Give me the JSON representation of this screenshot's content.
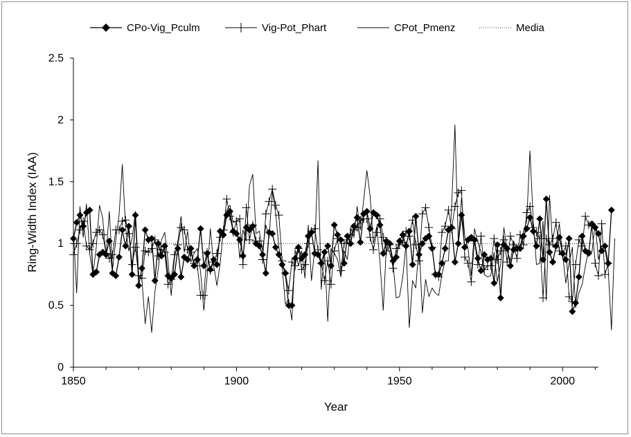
{
  "chart_data": {
    "type": "line",
    "title": "",
    "xlabel": "Year",
    "ylabel": "Ring-Width Index (IAA)",
    "xlim": [
      1850,
      2011
    ],
    "ylim": [
      0,
      2.5
    ],
    "x_ticks": [
      "1850",
      "1900",
      "1950",
      "2000"
    ],
    "y_ticks": [
      "0",
      "0.5",
      "1",
      "1.5",
      "2",
      "2.5"
    ],
    "grid": false,
    "legend_position": "top",
    "x_start_year": 1850,
    "series": [
      {
        "name": "CPo-Vig_Pculm",
        "marker": "diamond",
        "start_year": 1850,
        "values": [
          1.04,
          1.17,
          1.23,
          1.14,
          1.25,
          1.27,
          0.75,
          0.77,
          0.91,
          0.93,
          0.91,
          1.02,
          0.76,
          0.74,
          0.89,
          1.11,
          0.98,
          1.14,
          0.75,
          1.23,
          0.66,
          0.8,
          1.11,
          1.03,
          1.04,
          0.7,
          1.0,
          0.9,
          0.98,
          0.74,
          0.72,
          0.75,
          0.96,
          0.73,
          0.89,
          0.87,
          0.96,
          0.82,
          0.87,
          1.12,
          0.82,
          0.92,
          0.79,
          0.87,
          0.83,
          1.1,
          1.07,
          1.23,
          1.26,
          1.1,
          1.08,
          1.03,
          0.9,
          1.13,
          1.11,
          1.14,
          1.0,
          0.98,
          0.91,
          0.76,
          1.09,
          1.08,
          0.97,
          0.91,
          0.83,
          0.76,
          0.5,
          0.5,
          0.88,
          0.97,
          0.88,
          0.91,
          1.06,
          1.09,
          0.92,
          0.91,
          0.84,
          0.93,
          0.98,
          0.82,
          1.15,
          1.07,
          1.03,
          0.84,
          1.06,
          1.0,
          1.14,
          1.21,
          1.01,
          1.24,
          1.26,
          1.12,
          1.25,
          1.23,
          1.15,
          0.92,
          1.02,
          1.0,
          0.86,
          0.89,
          1.02,
          1.07,
          0.98,
          1.1,
          0.83,
          1.22,
          0.91,
          1.0,
          1.04,
          1.06,
          0.96,
          0.75,
          0.75,
          0.84,
          0.96,
          1.11,
          1.13,
          0.85,
          1.0,
          1.23,
          0.97,
          1.03,
          1.05,
          1.03,
          0.88,
          0.78,
          0.91,
          0.87,
          0.88,
          0.68,
          0.99,
          0.56,
          0.99,
          0.96,
          0.82,
          0.95,
          0.96,
          0.96,
          1.06,
          1.12,
          1.21,
          1.1,
          0.98,
          1.2,
          0.87,
          1.36,
          0.93,
          0.85,
          0.98,
          1.05,
          0.92,
          0.87,
          1.04,
          0.45,
          0.52,
          0.73,
          1.06,
          0.94,
          0.92,
          1.16,
          1.13,
          1.08,
          0.94,
          0.98,
          0.84,
          1.27
        ]
      },
      {
        "name": "Vig-Pot_Phart",
        "marker": "plus",
        "start_year": 1850,
        "values": [
          0.91,
          1.0,
          1.11,
          1.18,
          0.98,
          0.95,
          1.0,
          1.09,
          1.11,
          1.07,
          0.92,
          0.88,
          0.91,
          1.11,
          1.11,
          1.18,
          1.19,
          1.08,
          0.83,
          0.97,
          0.74,
          0.72,
          0.94,
          0.93,
          0.96,
          1.03,
          0.9,
          0.95,
          0.93,
          0.67,
          0.71,
          0.91,
          0.99,
          1.13,
          1.11,
          0.95,
          0.93,
          0.84,
          0.82,
          0.58,
          0.58,
          0.93,
          0.78,
          0.85,
          0.92,
          1.05,
          1.11,
          1.36,
          1.22,
          1.09,
          1.18,
          1.2,
          0.83,
          1.29,
          1.03,
          1.15,
          1.02,
          1.02,
          0.87,
          1.24,
          1.34,
          1.44,
          1.31,
          1.23,
          0.86,
          0.76,
          0.62,
          0.85,
          0.82,
          0.96,
          0.79,
          0.83,
          1.0,
          1.1,
          1.12,
          0.95,
          0.84,
          0.7,
          0.86,
          0.67,
          0.94,
          1.04,
          0.78,
          1.0,
          1.03,
          1.07,
          1.11,
          1.13,
          1.19,
          1.2,
          1.2,
          1.05,
          0.95,
          1.09,
          1.2,
          1.05,
          0.94,
          0.99,
          0.8,
          0.96,
          0.99,
          1.01,
          1.1,
          1.06,
          1.19,
          0.99,
          0.86,
          1.24,
          1.29,
          1.13,
          0.97,
          0.75,
          0.73,
          1.09,
          1.14,
          1.27,
          1.12,
          1.3,
          1.41,
          1.43,
          0.89,
          0.84,
          0.69,
          1.02,
          0.83,
          1.06,
          0.79,
          0.82,
          0.82,
          1.04,
          0.87,
          0.94,
          1.03,
          0.85,
          1.06,
          0.99,
          0.88,
          1.07,
          0.99,
          1.25,
          1.3,
          1.13,
          1.09,
          1.04,
          0.56,
          1.04,
          0.99,
          1.04,
          1.17,
          0.94,
          0.91,
          0.98,
          0.57,
          0.53,
          0.83,
          1.03,
          0.98,
          1.22,
          1.15,
          1.14,
          0.84,
          0.74,
          1.16,
          0.75,
          0.84
        ]
      },
      {
        "name": "CPot_Pmenz",
        "marker": "none",
        "start_year": 1850,
        "values": [
          1.1,
          0.6,
          1.3,
          1.05,
          1.32,
          0.92,
          0.75,
          0.97,
          1.31,
          1.2,
          0.9,
          1.26,
          0.79,
          1.03,
          1.23,
          1.64,
          1.13,
          0.94,
          1.04,
          1.26,
          0.74,
          0.71,
          0.35,
          0.57,
          0.28,
          0.61,
          0.79,
          1.03,
          1.09,
          0.86,
          0.58,
          0.89,
          1.01,
          1.22,
          0.93,
          1.1,
          0.85,
          0.92,
          0.96,
          0.77,
          0.46,
          0.73,
          1.12,
          0.83,
          0.66,
          0.84,
          1.12,
          1.27,
          1.31,
          1.17,
          1.18,
          0.88,
          1.11,
          1.02,
          1.47,
          1.56,
          1.08,
          1.1,
          0.94,
          1.15,
          1.05,
          1.42,
          1.25,
          0.97,
          0.82,
          0.51,
          0.55,
          0.38,
          0.95,
          0.82,
          0.94,
          0.72,
          1.15,
          0.7,
          0.96,
          1.67,
          0.63,
          0.94,
          0.37,
          0.96,
          0.92,
          0.87,
          0.73,
          0.94,
          0.87,
          1.13,
          1.05,
          1.3,
          1.11,
          1.35,
          1.59,
          1.38,
          1.0,
          1.14,
          0.85,
          0.46,
          1.0,
          0.92,
          0.84,
          0.56,
          0.57,
          0.73,
          1.0,
          0.32,
          0.7,
          0.64,
          1.0,
          0.44,
          0.71,
          0.57,
          0.64,
          0.6,
          0.58,
          0.75,
          0.86,
          0.86,
          1.3,
          1.96,
          1.01,
          1.37,
          1.06,
          0.96,
          0.74,
          1.12,
          1.01,
          0.93,
          0.75,
          0.73,
          0.74,
          0.93,
          0.69,
          0.83,
          1.13,
          0.94,
          0.86,
          1.02,
          0.94,
          0.97,
          1.1,
          1.18,
          1.75,
          1.19,
          0.83,
          0.84,
          1.18,
          0.54,
          1.39,
          0.97,
          0.98,
          1.16,
          0.92,
          0.68,
          0.84,
          0.97,
          0.48,
          0.6,
          0.67,
          0.82,
          0.95,
          0.93,
          1.16,
          0.87,
          0.98,
          0.96,
          0.79,
          0.3,
          1.04
        ]
      },
      {
        "name": "Media",
        "marker": "none",
        "style": "dotted",
        "values": [
          1.0,
          1.0
        ]
      }
    ]
  },
  "colors": {
    "line": "#000000",
    "frame": "#8c8c8c",
    "background": "#ffffff"
  }
}
